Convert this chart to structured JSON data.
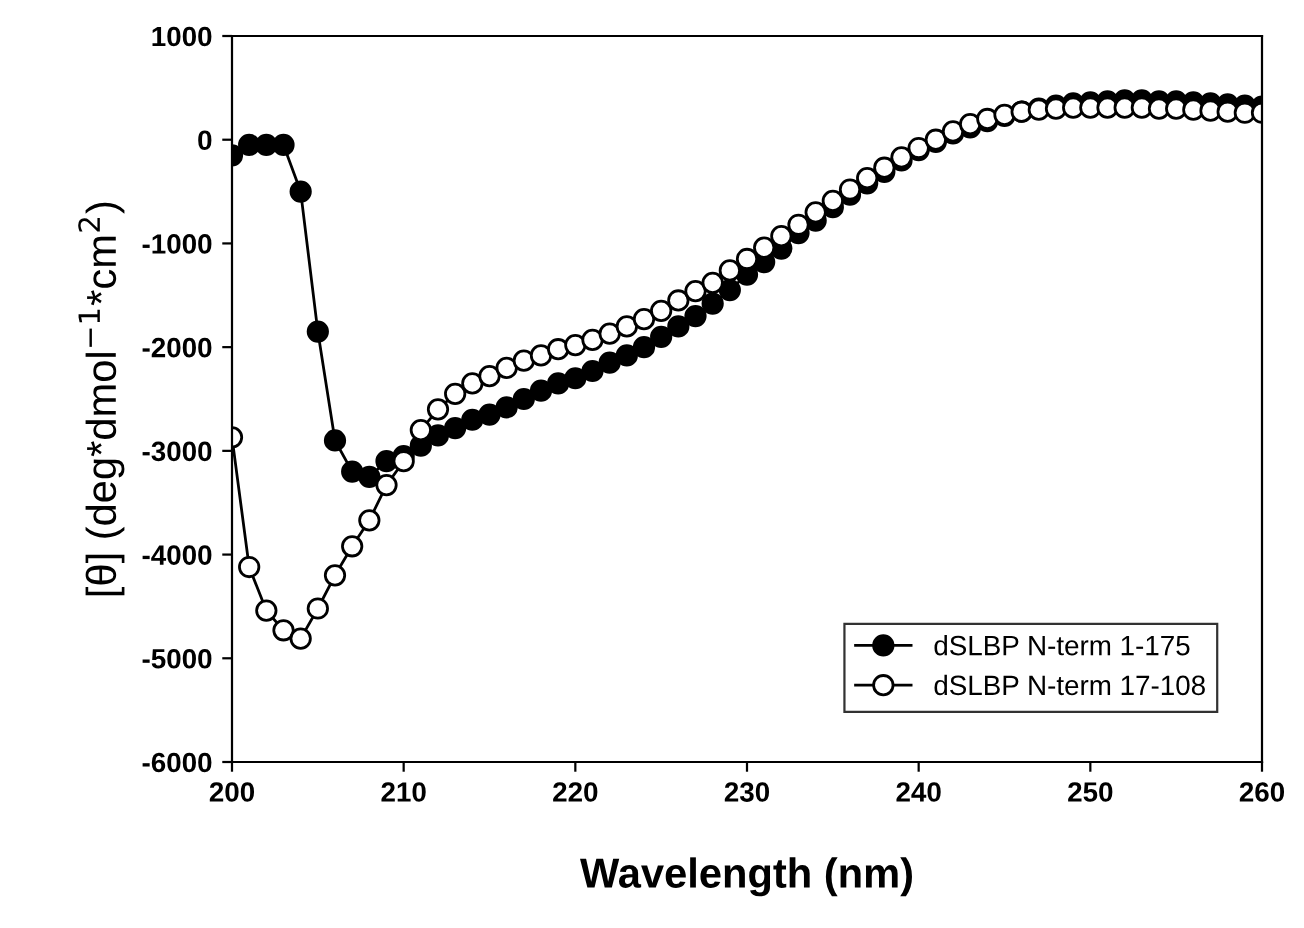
{
  "chart_data": {
    "type": "line",
    "xlabel": "Wavelength (nm)",
    "ylabel": "[θ] (deg*dmol$^{−1}$*cm$^{2}$)",
    "xlim": [
      200,
      260
    ],
    "xticks": [
      200,
      210,
      220,
      230,
      240,
      250,
      260
    ],
    "ylim": [
      -6000,
      1000
    ],
    "yticks": [
      -6000,
      -5000,
      -4000,
      -3000,
      -2000,
      -1000,
      0,
      1000
    ],
    "grid": false,
    "legend": "bottom right",
    "marker": "circle",
    "line_style": "solid",
    "x": [
      200,
      201,
      202,
      203,
      204,
      205,
      206,
      207,
      208,
      209,
      210,
      211,
      212,
      213,
      214,
      215,
      216,
      217,
      218,
      219,
      220,
      221,
      222,
      223,
      224,
      225,
      226,
      227,
      228,
      229,
      230,
      231,
      232,
      233,
      234,
      235,
      236,
      237,
      238,
      239,
      240,
      241,
      242,
      243,
      244,
      245,
      246,
      247,
      248,
      249,
      250,
      251,
      252,
      253,
      254,
      255,
      256,
      257,
      258,
      259,
      260
    ],
    "series": [
      {
        "name": "dSLBP N-term 1-175",
        "color": "#000000",
        "values": [
          -150,
          -50,
          -50,
          -50,
          -500,
          -1850,
          -2900,
          -3200,
          -3250,
          -3100,
          -3050,
          -2950,
          -2850,
          -2780,
          -2700,
          -2650,
          -2580,
          -2500,
          -2420,
          -2350,
          -2300,
          -2230,
          -2150,
          -2080,
          -2000,
          -1900,
          -1800,
          -1700,
          -1580,
          -1450,
          -1300,
          -1180,
          -1050,
          -900,
          -780,
          -650,
          -530,
          -420,
          -310,
          -200,
          -100,
          -20,
          60,
          120,
          180,
          230,
          270,
          300,
          330,
          350,
          360,
          370,
          380,
          380,
          370,
          370,
          360,
          350,
          340,
          330,
          320
        ]
      },
      {
        "name": "dSLBP N-term 17-108",
        "color": "#000000",
        "values": [
          -2870,
          -4120,
          -4540,
          -4730,
          -4810,
          -4520,
          -4200,
          -3920,
          -3670,
          -3330,
          -3100,
          -2800,
          -2600,
          -2450,
          -2350,
          -2280,
          -2200,
          -2130,
          -2080,
          -2020,
          -1980,
          -1930,
          -1870,
          -1800,
          -1730,
          -1650,
          -1550,
          -1460,
          -1380,
          -1260,
          -1150,
          -1040,
          -930,
          -820,
          -700,
          -590,
          -480,
          -370,
          -270,
          -170,
          -80,
          0,
          80,
          150,
          200,
          240,
          270,
          290,
          300,
          310,
          310,
          310,
          310,
          310,
          300,
          300,
          290,
          280,
          270,
          260,
          260
        ]
      }
    ]
  }
}
